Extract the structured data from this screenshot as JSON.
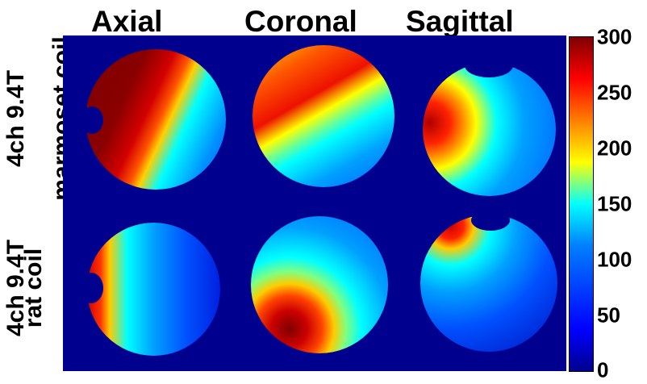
{
  "columns": [
    "Axial",
    "Coronal",
    "Sagittal"
  ],
  "rows": [
    {
      "line1": "4ch 9.4T",
      "line2": "marmoset coil"
    },
    {
      "line1": "4ch 9.4T",
      "line2": "rat coil"
    }
  ],
  "colorbar": {
    "ticks": [
      "300",
      "250",
      "200",
      "150",
      "100",
      "50",
      "0"
    ],
    "min": 0,
    "max": 300,
    "colormap": "jet"
  },
  "colors": {
    "background_map": "#00008f",
    "colorbar_border": "#000000"
  }
}
